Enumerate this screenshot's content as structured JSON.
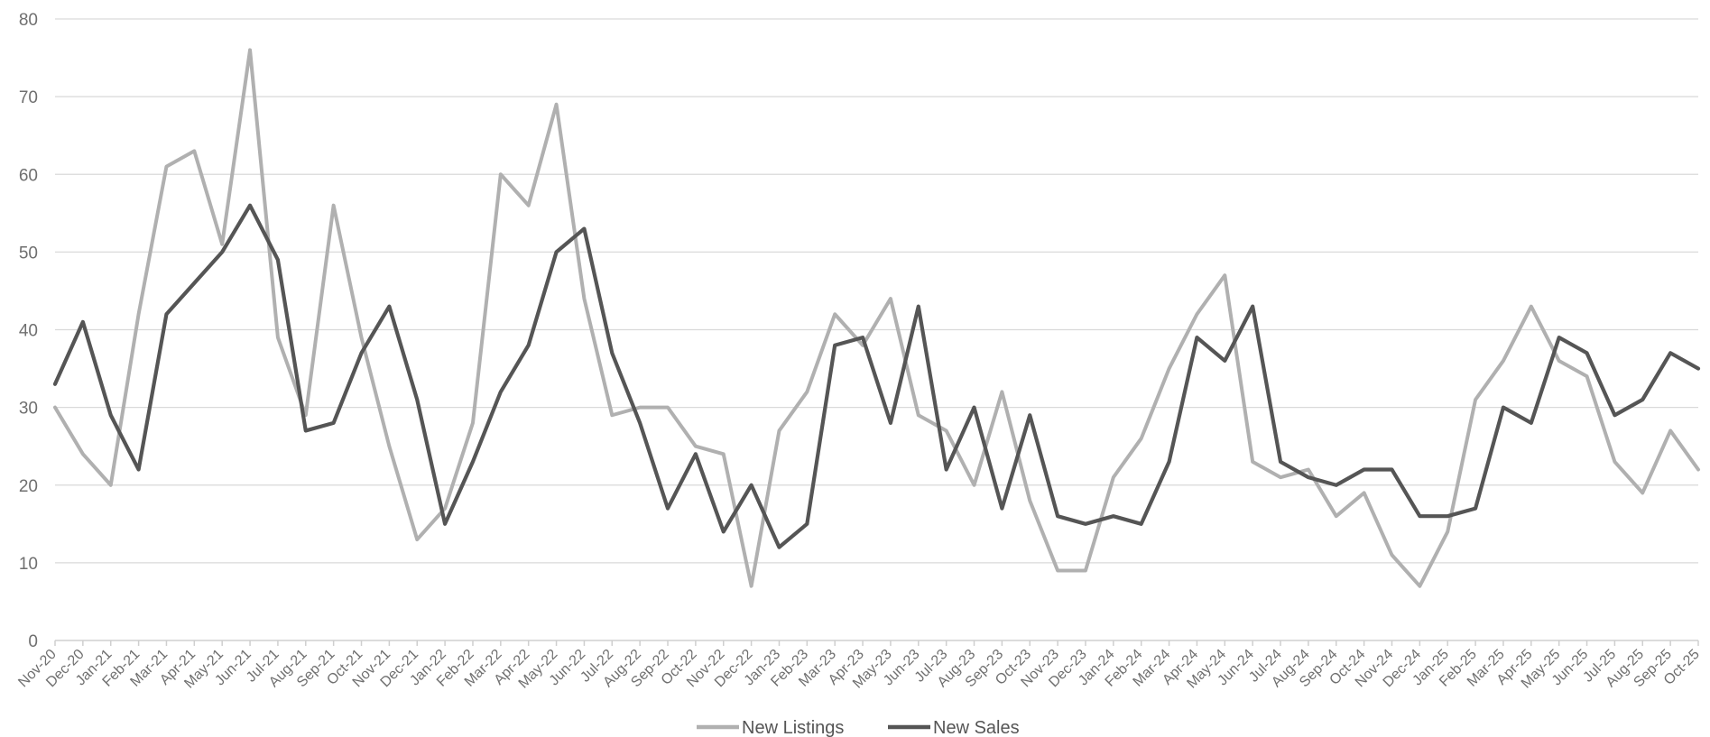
{
  "chart_data": {
    "type": "line",
    "title": "",
    "xlabel": "",
    "ylabel": "",
    "ylim": [
      0,
      80
    ],
    "yticks": [
      0,
      10,
      20,
      30,
      40,
      50,
      60,
      70,
      80
    ],
    "grid": "horizontal",
    "legend_position": "bottom-center",
    "x": [
      "Nov-20",
      "Dec-20",
      "Jan-21",
      "Feb-21",
      "Mar-21",
      "Apr-21",
      "May-21",
      "Jun-21",
      "Jul-21",
      "Aug-21",
      "Sep-21",
      "Oct-21",
      "Nov-21",
      "Dec-21",
      "Jan-22",
      "Feb-22",
      "Mar-22",
      "Apr-22",
      "May-22",
      "Jun-22",
      "Jul-22",
      "Aug-22",
      "Sep-22",
      "Oct-22",
      "Nov-22",
      "Dec-22",
      "Jan-23",
      "Feb-23",
      "Mar-23",
      "Apr-23",
      "May-23",
      "Jun-23",
      "Jul-23",
      "Aug-23",
      "Sep-23",
      "Oct-23",
      "Nov-23",
      "Dec-23",
      "Jan-24",
      "Feb-24",
      "Mar-24",
      "Apr-24",
      "May-24",
      "Jun-24",
      "Jul-24",
      "Aug-24",
      "Sep-24",
      "Oct-24",
      "Nov-24",
      "Dec-24",
      "Jan-25",
      "Feb-25",
      "Mar-25",
      "Apr-25",
      "May-25",
      "Jun-25",
      "Jul-25",
      "Aug-25",
      "Sep-25",
      "Oct-25"
    ],
    "series": [
      {
        "name": "New Listings",
        "color": "#b0b0b0",
        "values": [
          30,
          24,
          20,
          42,
          61,
          63,
          51,
          76,
          39,
          29,
          56,
          39,
          25,
          13,
          17,
          28,
          60,
          56,
          69,
          44,
          29,
          30,
          30,
          25,
          24,
          7,
          27,
          32,
          42,
          38,
          44,
          29,
          27,
          20,
          32,
          18,
          9,
          9,
          21,
          26,
          35,
          42,
          47,
          23,
          21,
          22,
          16,
          19,
          11,
          7,
          14,
          31,
          36,
          43,
          36,
          34,
          23,
          19,
          27,
          22
        ]
      },
      {
        "name": "New Sales",
        "color": "#555555",
        "values": [
          33,
          41,
          29,
          22,
          42,
          46,
          50,
          56,
          49,
          27,
          28,
          37,
          43,
          31,
          15,
          23,
          32,
          38,
          50,
          53,
          37,
          28,
          17,
          24,
          14,
          20,
          12,
          15,
          38,
          39,
          28,
          43,
          22,
          30,
          17,
          29,
          16,
          15,
          16,
          15,
          23,
          39,
          36,
          43,
          23,
          21,
          20,
          22,
          22,
          16,
          16,
          17,
          30,
          28,
          39,
          37,
          29,
          31,
          37,
          35
        ]
      }
    ]
  }
}
